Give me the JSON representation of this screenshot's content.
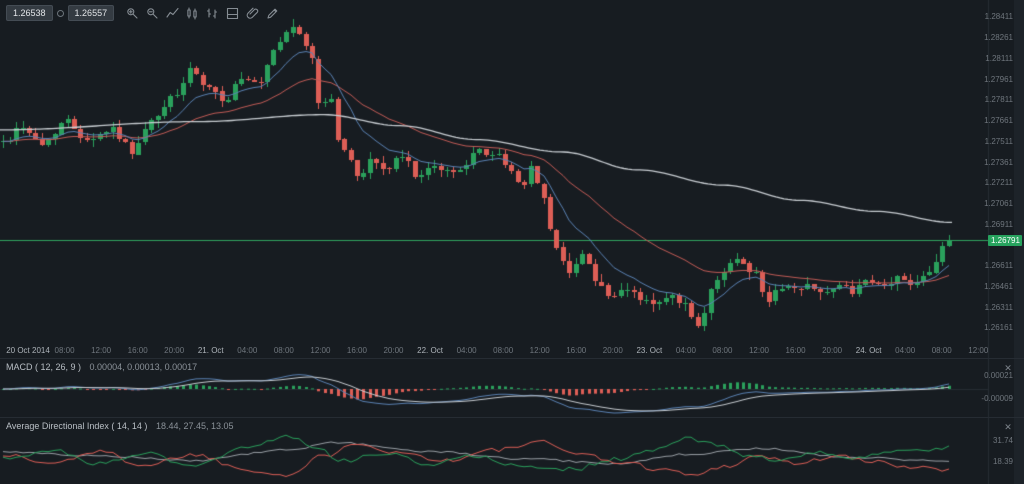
{
  "toolbar": {
    "sell_price": "1.26538",
    "buy_price": "1.26557",
    "icons": [
      {
        "name": "zoom-in"
      },
      {
        "name": "zoom-out"
      },
      {
        "name": "line-chart"
      },
      {
        "name": "candlestick-chart"
      },
      {
        "name": "bar-chart"
      },
      {
        "name": "chart-layout"
      },
      {
        "name": "attach"
      },
      {
        "name": "draw"
      }
    ]
  },
  "price_axis": {
    "top": 1.28411,
    "step": 0.0015,
    "count": 16,
    "current_price": 1.26791,
    "current_label": "1.26791"
  },
  "time_axis": {
    "labels": [
      "20 Oct 2014",
      "08:00",
      "12:00",
      "16:00",
      "20:00",
      "21. Oct",
      "04:00",
      "08:00",
      "12:00",
      "16:00",
      "20:00",
      "22. Oct",
      "04:00",
      "08:00",
      "12:00",
      "16:00",
      "20:00",
      "23. Oct",
      "04:00",
      "08:00",
      "12:00",
      "16:00",
      "20:00",
      "24. Oct",
      "04:00",
      "08:00",
      "12:00"
    ],
    "date_indices": [
      0,
      5,
      11,
      17,
      23
    ]
  },
  "macd": {
    "title": "MACD ( 12, 26, 9 )",
    "values": "0.00004, 0.00013, 0.00017",
    "axis_labels": [
      "0.00021",
      "-0.00009"
    ],
    "close_glyph": "✕"
  },
  "adx": {
    "title": "Average Directional Index ( 14, 14 )",
    "values": "18.44, 27.45, 13.05",
    "axis_labels": [
      "31.74",
      "18.39"
    ],
    "close_glyph": "✕"
  },
  "colors": {
    "background": "#171c21",
    "candle_up": "#2aa05c",
    "candle_down": "#dd5e56",
    "ma_fast": "#5a82b4",
    "ma_slow": "#c35b56",
    "ma_long": "#c8cdd2",
    "adx_line": "#9aa0a6",
    "current_price": "#2fa35f",
    "separator": "#262c33",
    "text_dim": "#6f767d",
    "text_bright": "#aeb4ba"
  },
  "chart_data": {
    "type": "candlestick",
    "view": {
      "price_max": 1.2853,
      "price_min": 1.2604
    },
    "candles": {
      "count": 148,
      "seed": 42,
      "price_keyframes": [
        [
          0.0,
          1.275
        ],
        [
          0.02,
          1.2762
        ],
        [
          0.04,
          1.2748
        ],
        [
          0.065,
          1.2765
        ],
        [
          0.09,
          1.2753
        ],
        [
          0.115,
          1.276
        ],
        [
          0.135,
          1.2744
        ],
        [
          0.16,
          1.2766
        ],
        [
          0.18,
          1.2784
        ],
        [
          0.2,
          1.2801
        ],
        [
          0.215,
          1.2788
        ],
        [
          0.235,
          1.2781
        ],
        [
          0.25,
          1.2795
        ],
        [
          0.27,
          1.2791
        ],
        [
          0.29,
          1.282
        ],
        [
          0.305,
          1.2836
        ],
        [
          0.315,
          1.2824
        ],
        [
          0.325,
          1.2813
        ],
        [
          0.335,
          1.2777
        ],
        [
          0.345,
          1.2784
        ],
        [
          0.355,
          1.2752
        ],
        [
          0.365,
          1.2737
        ],
        [
          0.375,
          1.2726
        ],
        [
          0.39,
          1.2737
        ],
        [
          0.405,
          1.273
        ],
        [
          0.42,
          1.2739
        ],
        [
          0.44,
          1.2726
        ],
        [
          0.46,
          1.2731
        ],
        [
          0.475,
          1.2728
        ],
        [
          0.49,
          1.2736
        ],
        [
          0.505,
          1.2744
        ],
        [
          0.52,
          1.2741
        ],
        [
          0.535,
          1.273
        ],
        [
          0.55,
          1.2719
        ],
        [
          0.56,
          1.2734
        ],
        [
          0.57,
          1.2708
        ],
        [
          0.585,
          1.2672
        ],
        [
          0.6,
          1.2658
        ],
        [
          0.615,
          1.2668
        ],
        [
          0.63,
          1.2647
        ],
        [
          0.645,
          1.2636
        ],
        [
          0.66,
          1.2643
        ],
        [
          0.675,
          1.2637
        ],
        [
          0.69,
          1.2632
        ],
        [
          0.705,
          1.2637
        ],
        [
          0.72,
          1.2632
        ],
        [
          0.735,
          1.2614
        ],
        [
          0.75,
          1.2643
        ],
        [
          0.765,
          1.2661
        ],
        [
          0.78,
          1.2666
        ],
        [
          0.795,
          1.2654
        ],
        [
          0.81,
          1.2636
        ],
        [
          0.825,
          1.2647
        ],
        [
          0.84,
          1.2642
        ],
        [
          0.855,
          1.2647
        ],
        [
          0.87,
          1.2641
        ],
        [
          0.885,
          1.2645
        ],
        [
          0.9,
          1.2643
        ],
        [
          0.915,
          1.2648
        ],
        [
          0.93,
          1.2645
        ],
        [
          0.945,
          1.2652
        ],
        [
          0.96,
          1.2648
        ],
        [
          0.975,
          1.2656
        ],
        [
          1.0,
          1.2679
        ]
      ]
    },
    "overlays": {
      "ma_fast_period": 10,
      "ma_slow_period": 30,
      "ma_long_keyframes": [
        [
          0.0,
          1.2759
        ],
        [
          0.21,
          1.2765
        ],
        [
          0.34,
          1.277
        ],
        [
          0.42,
          1.2762
        ],
        [
          0.5,
          1.2752
        ],
        [
          0.59,
          1.2743
        ],
        [
          0.67,
          1.273
        ],
        [
          0.76,
          1.2719
        ],
        [
          0.84,
          1.2708
        ],
        [
          0.92,
          1.27
        ],
        [
          1.0,
          1.2692
        ]
      ]
    },
    "indicators": {
      "macd": {
        "fast": 12,
        "slow": 26,
        "signal": 9
      },
      "adx": {
        "plus_di_keyframes": [
          [
            0.0,
            20
          ],
          [
            0.05,
            26
          ],
          [
            0.1,
            17
          ],
          [
            0.15,
            24
          ],
          [
            0.2,
            15
          ],
          [
            0.26,
            28
          ],
          [
            0.3,
            36
          ],
          [
            0.33,
            27
          ],
          [
            0.36,
            19
          ],
          [
            0.4,
            24
          ],
          [
            0.45,
            17
          ],
          [
            0.5,
            22
          ],
          [
            0.55,
            15
          ],
          [
            0.6,
            13
          ],
          [
            0.65,
            20
          ],
          [
            0.7,
            27
          ],
          [
            0.72,
            35
          ],
          [
            0.75,
            30
          ],
          [
            0.78,
            23
          ],
          [
            0.82,
            19
          ],
          [
            0.86,
            24
          ],
          [
            0.9,
            21
          ],
          [
            0.95,
            25
          ],
          [
            1.0,
            27.45
          ]
        ],
        "minus_di_keyframes": [
          [
            0.0,
            23
          ],
          [
            0.05,
            17
          ],
          [
            0.1,
            25
          ],
          [
            0.15,
            16
          ],
          [
            0.2,
            23
          ],
          [
            0.26,
            13
          ],
          [
            0.3,
            9
          ],
          [
            0.34,
            22
          ],
          [
            0.37,
            31
          ],
          [
            0.42,
            24
          ],
          [
            0.47,
            19
          ],
          [
            0.52,
            26
          ],
          [
            0.57,
            31
          ],
          [
            0.6,
            25
          ],
          [
            0.65,
            18
          ],
          [
            0.7,
            13
          ],
          [
            0.73,
            9
          ],
          [
            0.76,
            15
          ],
          [
            0.8,
            22
          ],
          [
            0.84,
            17
          ],
          [
            0.88,
            22
          ],
          [
            0.92,
            18
          ],
          [
            0.96,
            15
          ],
          [
            1.0,
            13.05
          ]
        ],
        "adx_keyframes": [
          [
            0.0,
            25
          ],
          [
            0.1,
            22
          ],
          [
            0.2,
            19
          ],
          [
            0.3,
            26
          ],
          [
            0.35,
            31
          ],
          [
            0.45,
            25
          ],
          [
            0.55,
            20
          ],
          [
            0.65,
            17
          ],
          [
            0.72,
            23
          ],
          [
            0.8,
            27
          ],
          [
            0.9,
            21
          ],
          [
            1.0,
            18.44
          ]
        ]
      }
    }
  }
}
